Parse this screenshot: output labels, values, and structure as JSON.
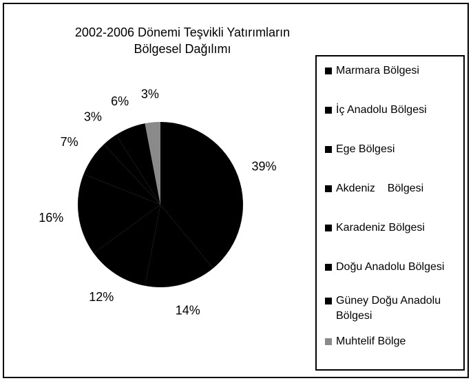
{
  "chart_data": {
    "type": "pie",
    "title": [
      "2002-2006 Dönemi Teşvikli Yatırımların",
      "Bölgesel Dağılımı"
    ],
    "categories": [
      "Marmara Bölgesi",
      "İç Anadolu Bölgesi",
      "Ege Bölgesi",
      "Akdeniz    Bölgesi",
      "Karadeniz Bölgesi",
      "Doğu Anadolu Bölgesi",
      "Güney Doğu Anadolu Bölgesi",
      "Muhtelif Bölge"
    ],
    "values": [
      39,
      14,
      12,
      16,
      7,
      3,
      6,
      3
    ],
    "value_labels": [
      "39%",
      "14%",
      "12%",
      "16%",
      "7%",
      "3%",
      "6%",
      "3%"
    ],
    "colors": [
      "#000000",
      "#000000",
      "#000000",
      "#000000",
      "#000000",
      "#000000",
      "#000000",
      "#8a8a8a"
    ],
    "legend": "right"
  }
}
